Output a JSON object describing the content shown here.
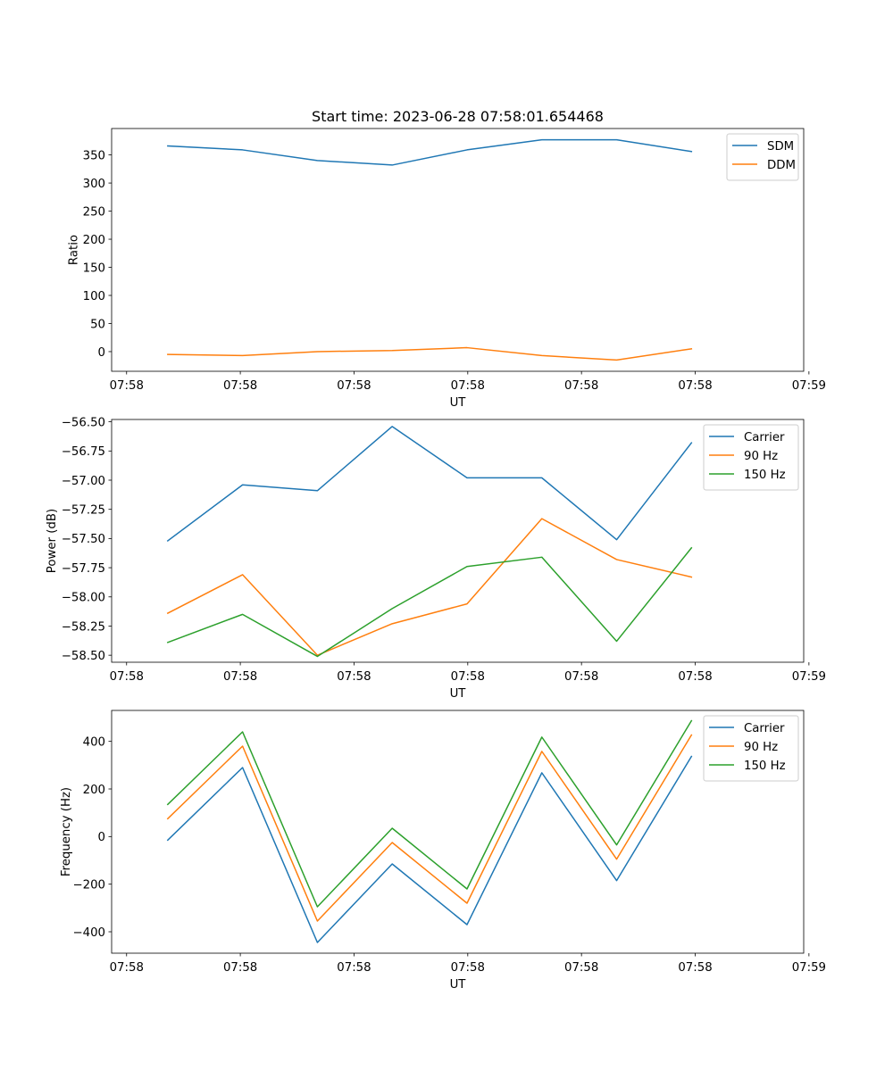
{
  "title": "Start time: 2023-06-28 07:58:01.654468",
  "colors": {
    "blue": "#1f77b4",
    "orange": "#ff7f0e",
    "green": "#2ca02c"
  },
  "chart_data": [
    {
      "type": "line",
      "title": "Start time: 2023-06-28 07:58:01.654468",
      "xlabel": "UT",
      "ylabel": "Ratio",
      "x": [
        1,
        2,
        3,
        4,
        5,
        6,
        7,
        8
      ],
      "xlim": [
        0.25,
        9.5
      ],
      "xticks": [
        {
          "value": 0.45,
          "label": "07:58"
        },
        {
          "value": 1.97,
          "label": "07:58"
        },
        {
          "value": 3.49,
          "label": "07:58"
        },
        {
          "value": 5.01,
          "label": "07:58"
        },
        {
          "value": 6.53,
          "label": "07:58"
        },
        {
          "value": 8.05,
          "label": "07:58"
        },
        {
          "value": 9.57,
          "label": "07:59"
        }
      ],
      "ylim": [
        -35,
        397
      ],
      "yticks": [
        {
          "value": 0,
          "label": "0"
        },
        {
          "value": 50,
          "label": "50"
        },
        {
          "value": 100,
          "label": "100"
        },
        {
          "value": 150,
          "label": "150"
        },
        {
          "value": 200,
          "label": "200"
        },
        {
          "value": 250,
          "label": "250"
        },
        {
          "value": 300,
          "label": "300"
        },
        {
          "value": 350,
          "label": "350"
        }
      ],
      "legend": "top-right",
      "grid": false,
      "series": [
        {
          "name": "SDM",
          "color": "#1f77b4",
          "values": [
            366,
            359,
            340,
            332,
            359,
            377,
            377,
            356
          ]
        },
        {
          "name": "DDM",
          "color": "#ff7f0e",
          "values": [
            -5,
            -7,
            0,
            2,
            7,
            -7,
            -15,
            5
          ]
        }
      ]
    },
    {
      "type": "line",
      "xlabel": "UT",
      "ylabel": "Power (dB)",
      "x": [
        1,
        2,
        3,
        4,
        5,
        6,
        7,
        8
      ],
      "xlim": [
        0.25,
        9.5
      ],
      "xticks": [
        {
          "value": 0.45,
          "label": "07:58"
        },
        {
          "value": 1.97,
          "label": "07:58"
        },
        {
          "value": 3.49,
          "label": "07:58"
        },
        {
          "value": 5.01,
          "label": "07:58"
        },
        {
          "value": 6.53,
          "label": "07:58"
        },
        {
          "value": 8.05,
          "label": "07:58"
        },
        {
          "value": 9.57,
          "label": "07:59"
        }
      ],
      "ylim": [
        -58.56,
        -56.48
      ],
      "yticks": [
        {
          "value": -58.5,
          "label": "−58.50"
        },
        {
          "value": -58.25,
          "label": "−58.25"
        },
        {
          "value": -58.0,
          "label": "−58.00"
        },
        {
          "value": -57.75,
          "label": "−57.75"
        },
        {
          "value": -57.5,
          "label": "−57.50"
        },
        {
          "value": -57.25,
          "label": "−57.25"
        },
        {
          "value": -57.0,
          "label": "−57.00"
        },
        {
          "value": -56.75,
          "label": "−56.75"
        },
        {
          "value": -56.5,
          "label": "−56.50"
        }
      ],
      "legend": "top-right",
      "grid": false,
      "series": [
        {
          "name": "Carrier",
          "color": "#1f77b4",
          "values": [
            -57.52,
            -57.04,
            -57.09,
            -56.54,
            -56.98,
            -56.98,
            -57.51,
            -56.68
          ]
        },
        {
          "name": "90 Hz",
          "color": "#ff7f0e",
          "values": [
            -58.14,
            -57.81,
            -58.5,
            -58.23,
            -58.06,
            -57.33,
            -57.68,
            -57.83
          ]
        },
        {
          "name": "150 Hz",
          "color": "#2ca02c",
          "values": [
            -58.39,
            -58.15,
            -58.51,
            -58.1,
            -57.74,
            -57.66,
            -58.38,
            -57.58
          ]
        }
      ]
    },
    {
      "type": "line",
      "xlabel": "UT",
      "ylabel": "Frequency (Hz)",
      "x": [
        1,
        2,
        3,
        4,
        5,
        6,
        7,
        8
      ],
      "xlim": [
        0.25,
        9.5
      ],
      "xticks": [
        {
          "value": 0.45,
          "label": "07:58"
        },
        {
          "value": 1.97,
          "label": "07:58"
        },
        {
          "value": 3.49,
          "label": "07:58"
        },
        {
          "value": 5.01,
          "label": "07:58"
        },
        {
          "value": 6.53,
          "label": "07:58"
        },
        {
          "value": 8.05,
          "label": "07:58"
        },
        {
          "value": 9.57,
          "label": "07:59"
        }
      ],
      "ylim": [
        -490,
        530
      ],
      "yticks": [
        {
          "value": -400,
          "label": "−400"
        },
        {
          "value": -200,
          "label": "−200"
        },
        {
          "value": 0,
          "label": "0"
        },
        {
          "value": 200,
          "label": "200"
        },
        {
          "value": 400,
          "label": "400"
        }
      ],
      "legend": "top-right",
      "grid": false,
      "series": [
        {
          "name": "Carrier",
          "color": "#1f77b4",
          "values": [
            -15,
            290,
            -445,
            -115,
            -370,
            268,
            -185,
            337
          ]
        },
        {
          "name": "90 Hz",
          "color": "#ff7f0e",
          "values": [
            75,
            380,
            -355,
            -25,
            -280,
            358,
            -95,
            427
          ]
        },
        {
          "name": "150 Hz",
          "color": "#2ca02c",
          "values": [
            135,
            440,
            -295,
            35,
            -220,
            418,
            -35,
            487
          ]
        }
      ]
    }
  ]
}
